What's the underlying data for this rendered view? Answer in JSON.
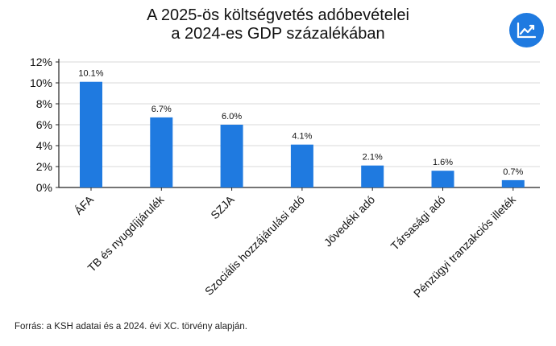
{
  "title_line1": "A 2025-ös költségvetés adóbevételei",
  "title_line2": "a 2024-es GDP százalékában",
  "logo_icon": "trending-up-chart-icon",
  "source": "Forrás: a KSH adatai és a 2024. évi XC. törvény alapján.",
  "chart_data": {
    "type": "bar",
    "categories": [
      "ÁFA",
      "TB és nyugdíjjárulék",
      "SZJA",
      "Szociális hozzájárulási adó",
      "Jövedéki adó",
      "Társasági adó",
      "Pénzügyi tranzakciós illeték"
    ],
    "values": [
      10.1,
      6.7,
      6.0,
      4.1,
      2.1,
      1.6,
      0.7
    ],
    "value_labels": [
      "10.1%",
      "6.7%",
      "6.0%",
      "4.1%",
      "2.1%",
      "1.6%",
      "0.7%"
    ],
    "yticks": [
      "0%",
      "2%",
      "4%",
      "6%",
      "8%",
      "10%",
      "12%"
    ],
    "ylim": [
      0,
      12
    ],
    "grid": true,
    "bar_color": "#1f7ae0",
    "xlabel": "",
    "ylabel": ""
  }
}
